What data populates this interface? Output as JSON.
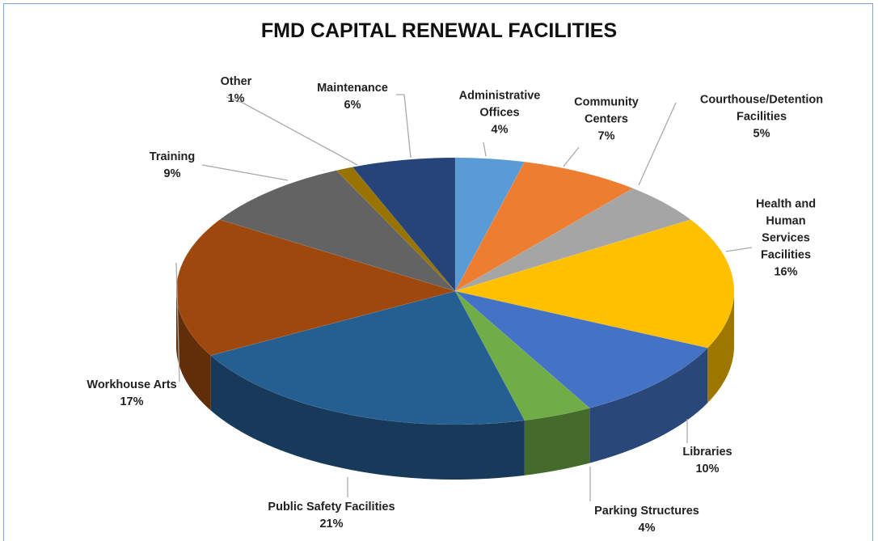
{
  "chart_data": {
    "type": "pie",
    "title": "FMD CAPITAL RENEWAL FACILITIES",
    "categories": [
      "Administrative Offices",
      "Community Centers",
      "Courthouse/Detention Facilities",
      "Health and Human Services Facilities",
      "Libraries",
      "Parking Structures",
      "Public Safety Facilities",
      "Workhouse Arts",
      "Training",
      "Other",
      "Maintenance"
    ],
    "values": [
      4,
      7,
      5,
      16,
      10,
      4,
      21,
      17,
      9,
      1,
      6
    ],
    "value_labels": [
      "4%",
      "7%",
      "5%",
      "16%",
      "10%",
      "4%",
      "21%",
      "17%",
      "9%",
      "1%",
      "6%"
    ],
    "colors": [
      "#5b9bd5",
      "#ed7d31",
      "#a5a5a5",
      "#ffc000",
      "#4472c4",
      "#70ad47",
      "#255e91",
      "#9e480e",
      "#636363",
      "#997300",
      "#264478"
    ]
  }
}
